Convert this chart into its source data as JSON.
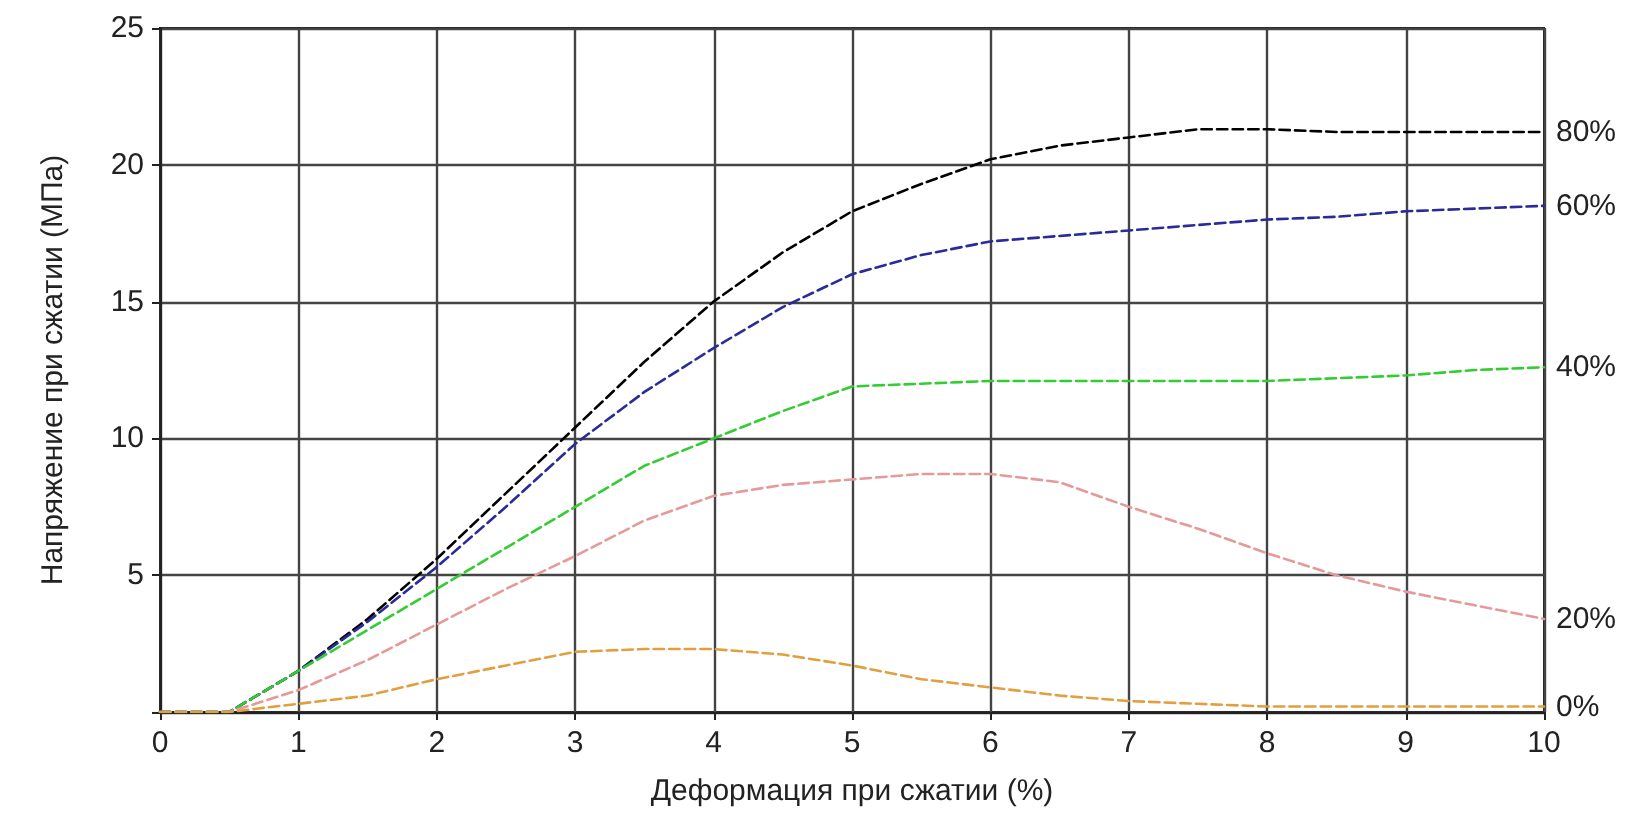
{
  "chart_data": {
    "type": "line",
    "xlabel": "Деформация при сжатии (%)",
    "ylabel": "Напряжение при сжатии (МПа)",
    "x": [
      0,
      0.5,
      1,
      1.5,
      2,
      2.5,
      3,
      3.5,
      4,
      4.5,
      5,
      5.5,
      6,
      6.5,
      7,
      7.5,
      8,
      8.5,
      9,
      9.5,
      10
    ],
    "series": [
      {
        "name": "80%",
        "color": "#000000",
        "values": [
          0,
          0,
          1.5,
          3.4,
          5.6,
          8,
          10.4,
          12.8,
          15,
          16.8,
          18.3,
          19.3,
          20.2,
          20.7,
          21,
          21.3,
          21.3,
          21.2,
          21.2,
          21.2,
          21.2
        ]
      },
      {
        "name": "60%",
        "color": "#2a2a9a",
        "values": [
          0,
          0,
          1.5,
          3.3,
          5.3,
          7.5,
          9.8,
          11.7,
          13.3,
          14.8,
          16,
          16.7,
          17.2,
          17.4,
          17.6,
          17.8,
          18,
          18.1,
          18.3,
          18.4,
          18.5
        ]
      },
      {
        "name": "40%",
        "color": "#33cc33",
        "values": [
          0,
          0,
          1.5,
          3,
          4.5,
          6,
          7.5,
          9,
          10,
          11,
          11.9,
          12,
          12.1,
          12.1,
          12.1,
          12.1,
          12.1,
          12.2,
          12.3,
          12.5,
          12.6
        ]
      },
      {
        "name": "20%",
        "color": "#e59a9a",
        "values": [
          0,
          0,
          0.8,
          1.9,
          3.2,
          4.5,
          5.7,
          7,
          7.9,
          8.3,
          8.5,
          8.7,
          8.7,
          8.4,
          7.5,
          6.7,
          5.8,
          5,
          4.4,
          3.9,
          3.4
        ]
      },
      {
        "name": "0%",
        "color": "#e0a040",
        "values": [
          0,
          0,
          0.3,
          0.6,
          1.2,
          1.7,
          2.2,
          2.3,
          2.3,
          2.1,
          1.7,
          1.2,
          0.9,
          0.6,
          0.4,
          0.3,
          0.2,
          0.2,
          0.2,
          0.2,
          0.2
        ]
      }
    ],
    "xlim": [
      0,
      10
    ],
    "xticks": [
      0,
      1,
      2,
      3,
      4,
      5,
      6,
      7,
      8,
      9,
      10
    ],
    "ylim": [
      0,
      25
    ],
    "yticks": [
      {
        "value": 0,
        "label": null
      },
      5,
      10,
      15,
      20,
      25
    ],
    "grid": true,
    "legend": false,
    "marker": "none",
    "line_style": "dashed"
  }
}
